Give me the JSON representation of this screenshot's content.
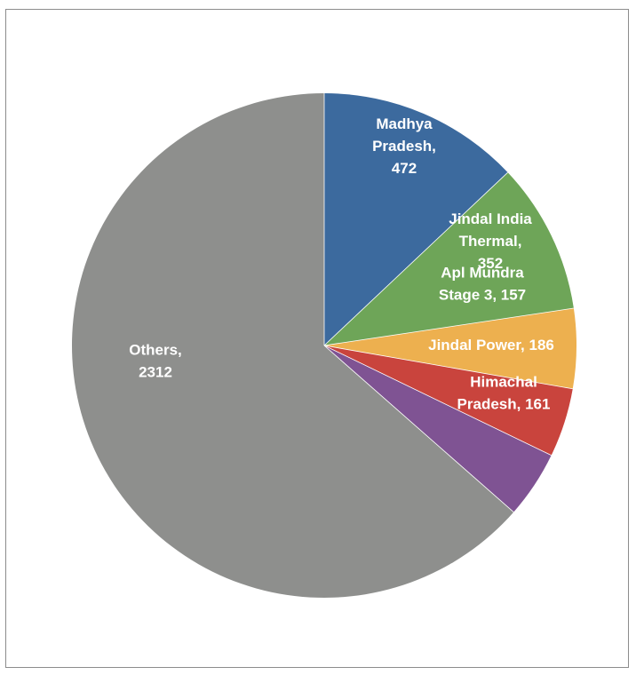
{
  "chart_data": {
    "type": "pie",
    "slices": [
      {
        "name": "Madhya Pradesh",
        "value": 472,
        "color": "#3c6a9e",
        "label_lines": [
          "Madhya",
          "Pradesh,",
          "472"
        ]
      },
      {
        "name": "Jindal India Thermal",
        "value": 352,
        "color": "#6ea558",
        "label_lines": [
          "Jindal India",
          "Thermal,",
          "352"
        ]
      },
      {
        "name": "Jindal Power",
        "value": 186,
        "color": "#edb04f",
        "label_lines": [
          "Jindal Power, 186"
        ]
      },
      {
        "name": "Himachal Pradesh",
        "value": 161,
        "color": "#c9443d",
        "label_lines": [
          "Himachal",
          "Pradesh, 161"
        ]
      },
      {
        "name": "Apl Mundra Stage 3",
        "value": 157,
        "color": "#7f5393",
        "label_lines": [
          "Apl Mundra",
          "Stage 3, 157"
        ]
      },
      {
        "name": "Others",
        "value": 2312,
        "color": "#8e8f8d",
        "label_lines": [
          "Others,",
          "2312"
        ]
      }
    ],
    "start_angle_deg": 0,
    "direction": "clockwise"
  }
}
